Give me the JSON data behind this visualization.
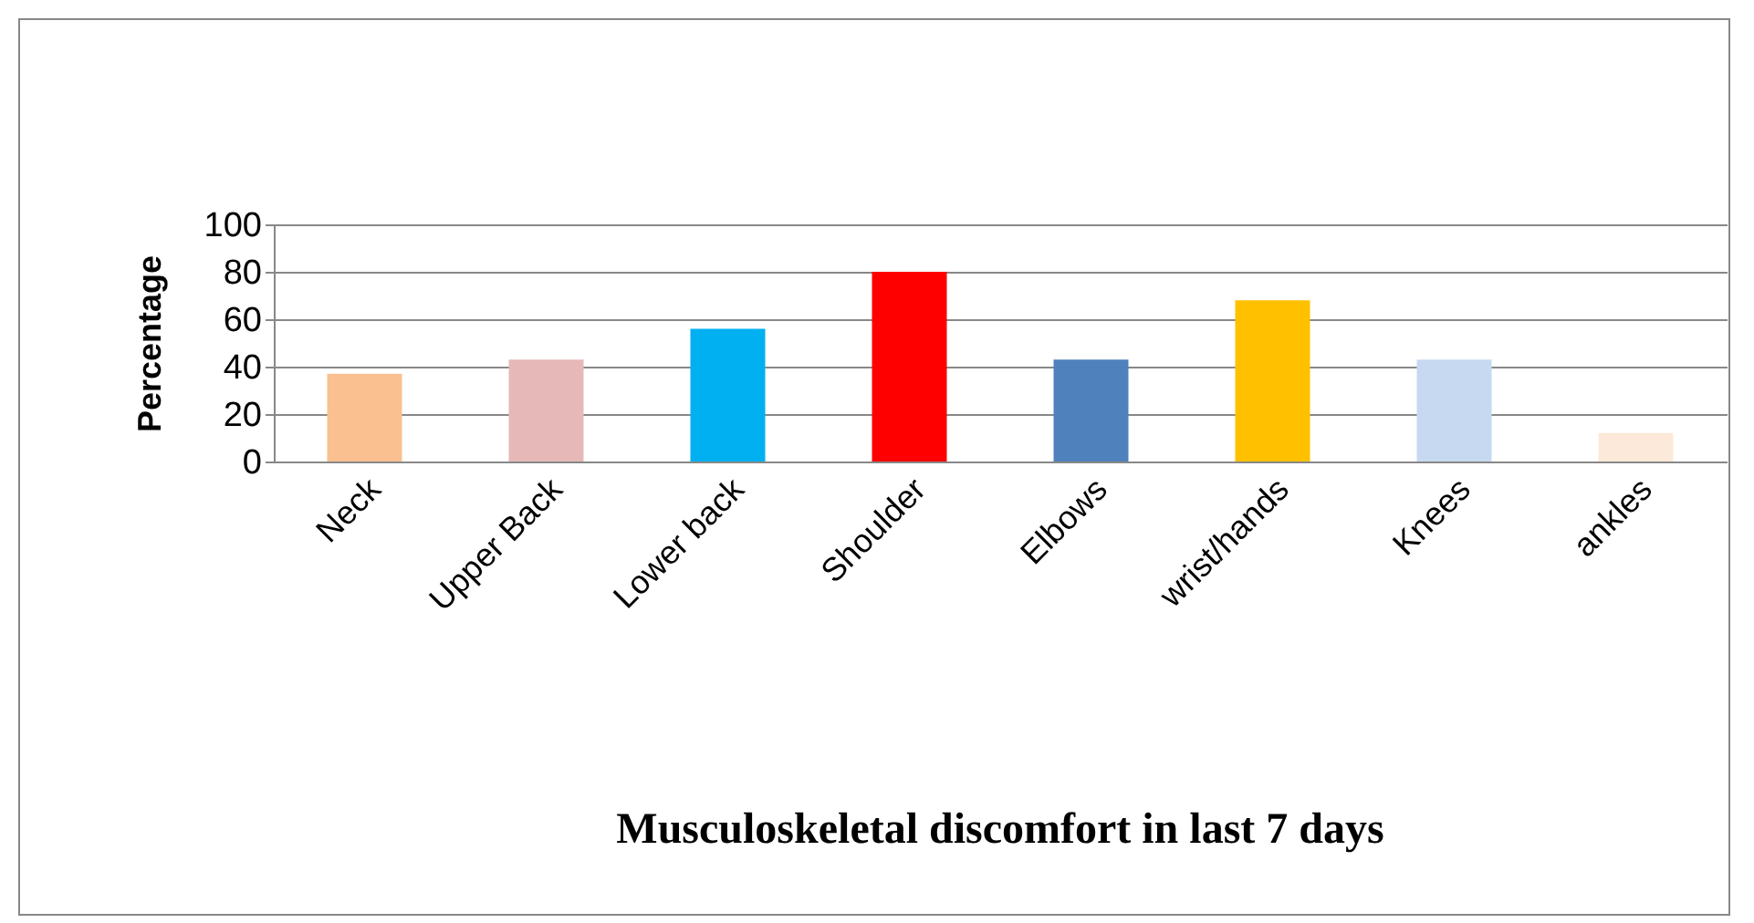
{
  "chart_data": {
    "type": "bar",
    "title": "Musculoskeletal discomfort in last 7 days",
    "ylabel": "Percentage",
    "categories": [
      "Neck",
      "Upper Back",
      "Lower back",
      "Shoulder",
      "Elbows",
      "wrist/hands",
      "Knees",
      "ankles"
    ],
    "values": [
      37,
      43,
      56,
      80,
      43,
      68,
      43,
      12
    ],
    "colors": [
      "#fac090",
      "#e6b9b8",
      "#00b0f0",
      "#ff0000",
      "#4f81bd",
      "#ffc000",
      "#c6d9f1",
      "#fde9d9"
    ],
    "ylim": [
      0,
      100
    ],
    "yticks": [
      0,
      20,
      40,
      60,
      80,
      100
    ],
    "grid": "y"
  }
}
